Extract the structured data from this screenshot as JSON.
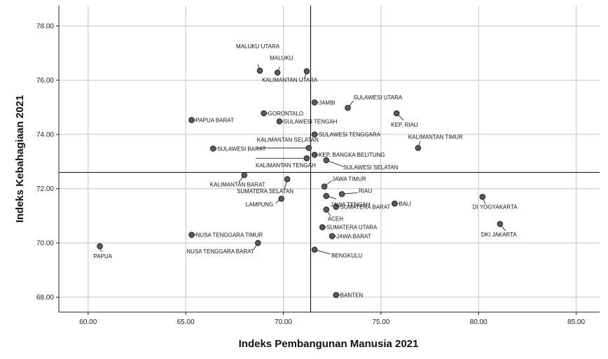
{
  "chart_data": {
    "type": "scatter",
    "xlabel": "Indeks Pembangunan Manusia 2021",
    "ylabel": "Indeks Kebahagiaan 2021",
    "xlim": [
      58.5,
      86.2
    ],
    "ylim": [
      67.45,
      78.75
    ],
    "xticks": [
      60,
      65,
      70,
      75,
      80,
      85
    ],
    "yticks": [
      68,
      70,
      72,
      74,
      76,
      78
    ],
    "xtick_labels": [
      "60.00",
      "65.00",
      "70.00",
      "75.00",
      "80.00",
      "85.00"
    ],
    "ytick_labels": [
      "68.00",
      "70.00",
      "72.00",
      "74.00",
      "76.00",
      "78.00"
    ],
    "grid": true,
    "reference_lines": {
      "x": 71.4,
      "y": 72.6
    },
    "colors": {
      "point": "#5a5a5a",
      "grid": "#c4c4c4",
      "ref": "#000000"
    },
    "points": [
      {
        "label": "MALUKU UTARA",
        "x": 68.8,
        "y": 76.35
      },
      {
        "label": "MALUKU",
        "x": 69.7,
        "y": 76.28
      },
      {
        "label": "KALIMANTAN UTARA",
        "x": 71.2,
        "y": 76.33
      },
      {
        "label": "JAMBI",
        "x": 71.6,
        "y": 75.18
      },
      {
        "label": "SULAWESI UTARA",
        "x": 73.3,
        "y": 74.98
      },
      {
        "label": "GORONTALO",
        "x": 69.0,
        "y": 74.78
      },
      {
        "label": "KEP. RIAU",
        "x": 75.8,
        "y": 74.78
      },
      {
        "label": "PAPUA BARAT",
        "x": 65.3,
        "y": 74.53
      },
      {
        "label": "SULAWESI TENGAH",
        "x": 69.8,
        "y": 74.48
      },
      {
        "label": "SULAWESI TENGGARA",
        "x": 71.6,
        "y": 74.0
      },
      {
        "label": "KALIMANTAN TIMUR",
        "x": 76.9,
        "y": 73.5
      },
      {
        "label": "SULAWESI BARAT",
        "x": 66.4,
        "y": 73.48
      },
      {
        "label": "KALIMANTAN SELATAN",
        "x": 71.3,
        "y": 73.5
      },
      {
        "label": "KEP. BANGKA BELITUNG",
        "x": 71.6,
        "y": 73.25
      },
      {
        "label": "KALIMANTAN TENGAH",
        "x": 71.2,
        "y": 73.12
      },
      {
        "label": "SULAWESI SELATAN",
        "x": 72.2,
        "y": 73.05
      },
      {
        "label": "KALIMANTAN BARAT",
        "x": 68.0,
        "y": 72.5
      },
      {
        "label": "SUMATERA SELATAN",
        "x": 70.2,
        "y": 72.35
      },
      {
        "label": "JAWA TIMUR",
        "x": 72.1,
        "y": 72.08
      },
      {
        "label": "RIAU",
        "x": 73.0,
        "y": 71.8
      },
      {
        "label": "JAWA TENGAH",
        "x": 72.2,
        "y": 71.73
      },
      {
        "label": "DI YOGYAKARTA",
        "x": 80.2,
        "y": 71.7
      },
      {
        "label": "LAMPUNG",
        "x": 69.9,
        "y": 71.63
      },
      {
        "label": "BALI",
        "x": 75.7,
        "y": 71.45
      },
      {
        "label": "SUMATERA BARAT",
        "x": 72.7,
        "y": 71.33
      },
      {
        "label": "ACEH",
        "x": 72.2,
        "y": 71.23
      },
      {
        "label": "DKI JAKARTA",
        "x": 81.1,
        "y": 70.7
      },
      {
        "label": "SUMATERA UTARA",
        "x": 72.0,
        "y": 70.58
      },
      {
        "label": "NUSA TENGGARA TIMUR",
        "x": 65.3,
        "y": 70.3
      },
      {
        "label": "JAWA BARAT",
        "x": 72.5,
        "y": 70.25
      },
      {
        "label": "NUSA TENGGARA BARAT",
        "x": 68.7,
        "y": 70.0
      },
      {
        "label": "PAPUA",
        "x": 60.6,
        "y": 69.88
      },
      {
        "label": "BENGKULU",
        "x": 71.6,
        "y": 69.75
      },
      {
        "label": "BANTEN",
        "x": 72.7,
        "y": 68.08
      }
    ]
  }
}
